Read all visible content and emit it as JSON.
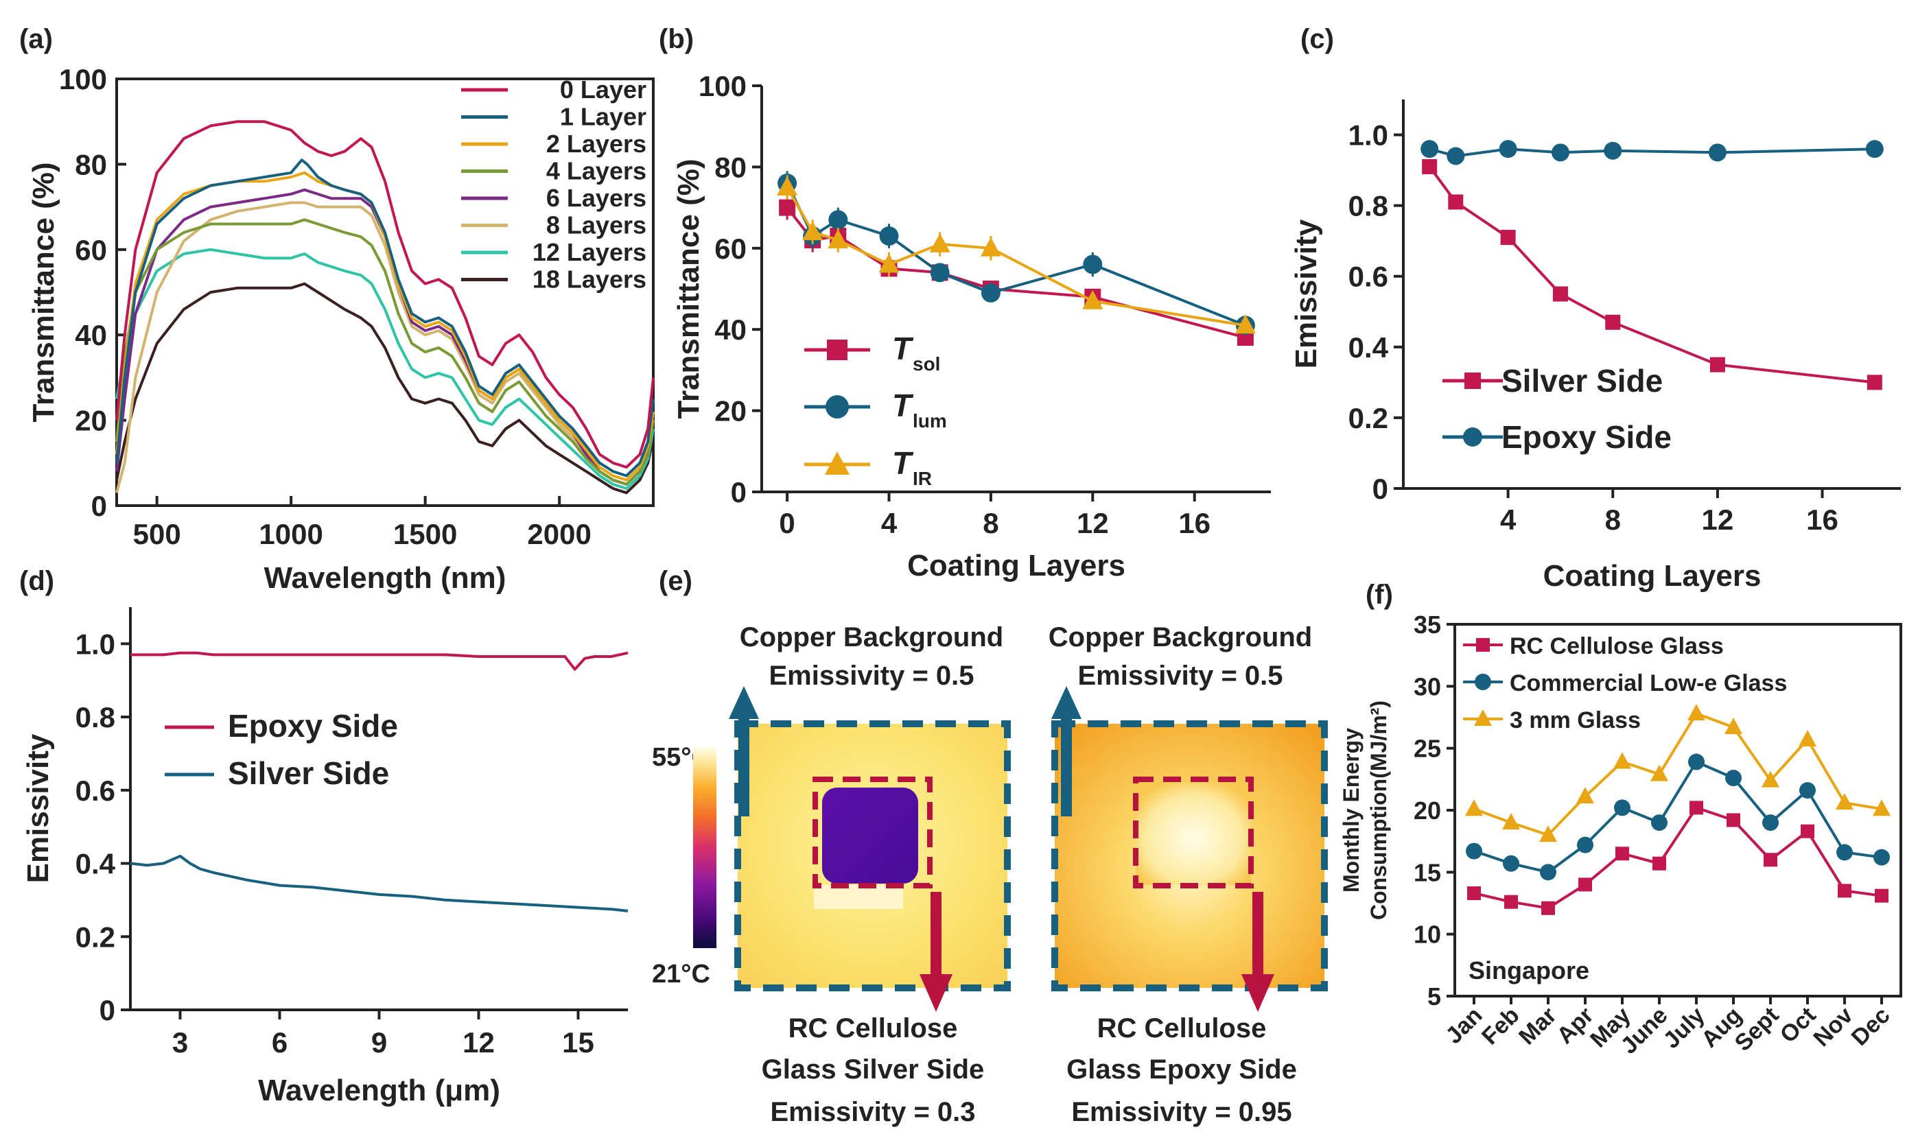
{
  "colors": {
    "red": "#c0184f",
    "teal": "#17607f",
    "gold": "#e8a514",
    "arrowBlue": "#17607f",
    "arrowRed": "#b8133f"
  },
  "panel_labels": [
    "(a)",
    "(b)",
    "(c)",
    "(d)",
    "(e)",
    "(f)"
  ],
  "chart_data": [
    {
      "id": "a",
      "type": "line",
      "xlabel": "Wavelength (nm)",
      "ylabel": "Transmittance (%)",
      "xlim": [
        350,
        2350
      ],
      "ylim": [
        0,
        100
      ],
      "xticks": [
        500,
        1000,
        1500,
        2000
      ],
      "yticks": [
        0,
        20,
        40,
        60,
        80,
        100
      ],
      "legend": "top-right",
      "series": [
        {
          "name": "0 Layer",
          "color": "#c0184f",
          "x": [
            350,
            380,
            420,
            500,
            600,
            700,
            800,
            900,
            1000,
            1050,
            1100,
            1150,
            1200,
            1260,
            1300,
            1350,
            1400,
            1450,
            1500,
            1550,
            1600,
            1650,
            1700,
            1750,
            1800,
            1850,
            1900,
            1950,
            2000,
            2050,
            2100,
            2150,
            2200,
            2250,
            2300,
            2330,
            2350
          ],
          "y": [
            20,
            40,
            60,
            78,
            86,
            89,
            90,
            90,
            88,
            85,
            83,
            82,
            83,
            86,
            84,
            76,
            64,
            55,
            52,
            53,
            51,
            44,
            35,
            33,
            38,
            40,
            36,
            30,
            26,
            23,
            18,
            12,
            10,
            9,
            12,
            18,
            30
          ]
        },
        {
          "name": "1 Layer",
          "color": "#17607f",
          "x": [
            350,
            380,
            420,
            500,
            600,
            700,
            800,
            900,
            1000,
            1040,
            1060,
            1100,
            1150,
            1200,
            1260,
            1300,
            1350,
            1400,
            1450,
            1500,
            1550,
            1600,
            1650,
            1700,
            1750,
            1800,
            1850,
            1900,
            1950,
            2000,
            2050,
            2100,
            2150,
            2200,
            2250,
            2300,
            2330,
            2350
          ],
          "y": [
            10,
            30,
            50,
            66,
            72,
            75,
            76,
            77,
            78,
            81,
            80,
            77,
            75,
            74,
            73,
            71,
            64,
            53,
            45,
            43,
            44,
            42,
            36,
            28,
            26,
            31,
            33,
            29,
            25,
            21,
            18,
            14,
            10,
            8,
            7,
            10,
            15,
            25
          ]
        },
        {
          "name": "2 Layers",
          "color": "#e8a514",
          "x": [
            350,
            380,
            420,
            500,
            600,
            700,
            800,
            900,
            1000,
            1050,
            1100,
            1150,
            1200,
            1260,
            1300,
            1350,
            1400,
            1450,
            1500,
            1550,
            1600,
            1650,
            1700,
            1750,
            1800,
            1850,
            1900,
            1950,
            2000,
            2050,
            2100,
            2150,
            2200,
            2250,
            2300,
            2330,
            2350
          ],
          "y": [
            12,
            32,
            52,
            67,
            73,
            75,
            76,
            76,
            77,
            78,
            76,
            75,
            74,
            73,
            71,
            63,
            52,
            44,
            42,
            43,
            41,
            35,
            27,
            25,
            30,
            32,
            28,
            24,
            20,
            17,
            13,
            9,
            7,
            6,
            9,
            14,
            22
          ]
        },
        {
          "name": "4 Layers",
          "color": "#7a9a35",
          "x": [
            350,
            380,
            420,
            500,
            600,
            700,
            800,
            900,
            1000,
            1050,
            1100,
            1150,
            1200,
            1260,
            1300,
            1350,
            1400,
            1450,
            1500,
            1550,
            1600,
            1650,
            1700,
            1750,
            1800,
            1850,
            1900,
            1950,
            2000,
            2050,
            2100,
            2150,
            2200,
            2250,
            2300,
            2330,
            2350
          ],
          "y": [
            15,
            35,
            50,
            60,
            64,
            66,
            66,
            66,
            66,
            67,
            66,
            65,
            64,
            63,
            61,
            55,
            45,
            38,
            36,
            37,
            35,
            30,
            24,
            22,
            27,
            29,
            25,
            21,
            18,
            15,
            11,
            8,
            6,
            5,
            8,
            12,
            20
          ]
        },
        {
          "name": "6 Layers",
          "color": "#7b2a86",
          "x": [
            350,
            380,
            420,
            500,
            600,
            700,
            800,
            900,
            1000,
            1050,
            1100,
            1150,
            1200,
            1260,
            1300,
            1350,
            1400,
            1450,
            1500,
            1550,
            1600,
            1650,
            1700,
            1750,
            1800,
            1850,
            1900,
            1950,
            2000,
            2050,
            2100,
            2150,
            2200,
            2250,
            2300,
            2330,
            2350
          ],
          "y": [
            8,
            25,
            45,
            60,
            67,
            70,
            71,
            72,
            73,
            74,
            73,
            72,
            72,
            72,
            70,
            63,
            52,
            43,
            41,
            42,
            40,
            34,
            27,
            25,
            30,
            32,
            28,
            24,
            20,
            17,
            12,
            8,
            6,
            5,
            8,
            13,
            22
          ]
        },
        {
          "name": "8 Layers",
          "color": "#d2b46e",
          "x": [
            350,
            380,
            420,
            500,
            600,
            700,
            800,
            900,
            1000,
            1050,
            1100,
            1150,
            1200,
            1260,
            1300,
            1350,
            1400,
            1450,
            1500,
            1550,
            1600,
            1650,
            1700,
            1750,
            1800,
            1850,
            1900,
            1950,
            2000,
            2050,
            2100,
            2150,
            2200,
            2250,
            2300,
            2330,
            2350
          ],
          "y": [
            3,
            10,
            30,
            50,
            62,
            67,
            69,
            70,
            71,
            71,
            70,
            70,
            70,
            70,
            68,
            61,
            50,
            42,
            40,
            41,
            39,
            33,
            26,
            24,
            29,
            31,
            27,
            23,
            19,
            16,
            12,
            8,
            6,
            5,
            8,
            13,
            22
          ]
        },
        {
          "name": "12 Layers",
          "color": "#2ec4a7",
          "x": [
            350,
            380,
            420,
            500,
            600,
            700,
            800,
            900,
            1000,
            1050,
            1100,
            1150,
            1200,
            1260,
            1300,
            1350,
            1400,
            1450,
            1500,
            1550,
            1600,
            1650,
            1700,
            1750,
            1800,
            1850,
            1900,
            1950,
            2000,
            2050,
            2100,
            2150,
            2200,
            2250,
            2300,
            2330,
            2350
          ],
          "y": [
            25,
            35,
            45,
            55,
            59,
            60,
            59,
            58,
            58,
            59,
            57,
            56,
            55,
            54,
            52,
            46,
            38,
            32,
            30,
            31,
            30,
            25,
            20,
            19,
            23,
            25,
            22,
            19,
            16,
            13,
            10,
            7,
            5,
            4,
            7,
            11,
            18
          ]
        },
        {
          "name": "18 Layers",
          "color": "#3b2020",
          "x": [
            350,
            380,
            420,
            500,
            600,
            700,
            800,
            900,
            1000,
            1050,
            1100,
            1150,
            1200,
            1260,
            1300,
            1350,
            1400,
            1450,
            1500,
            1550,
            1600,
            1650,
            1700,
            1750,
            1800,
            1850,
            1900,
            1950,
            2000,
            2050,
            2100,
            2150,
            2200,
            2250,
            2300,
            2330,
            2350
          ],
          "y": [
            6,
            15,
            25,
            38,
            46,
            50,
            51,
            51,
            51,
            52,
            50,
            48,
            46,
            44,
            42,
            37,
            30,
            25,
            24,
            25,
            24,
            20,
            15,
            14,
            18,
            20,
            17,
            14,
            12,
            10,
            8,
            6,
            4,
            3,
            6,
            10,
            16
          ]
        }
      ]
    },
    {
      "id": "b",
      "type": "line",
      "xlabel": "Coating Layers",
      "ylabel": "Transmittance (%)",
      "xlim": [
        -1,
        19
      ],
      "ylim": [
        0,
        100
      ],
      "xticks": [
        0,
        4,
        8,
        12,
        16
      ],
      "yticks": [
        0,
        20,
        40,
        60,
        80,
        100
      ],
      "legend": "bottom-left",
      "series": [
        {
          "name": "T",
          "sub": "sol",
          "color": "#c0184f",
          "marker": "square",
          "x": [
            0,
            1,
            2,
            4,
            6,
            8,
            12,
            18
          ],
          "y": [
            70,
            62,
            63,
            55,
            54,
            50,
            48,
            38
          ],
          "err": [
            3,
            3,
            3,
            2,
            2,
            2,
            2,
            1
          ]
        },
        {
          "name": "T",
          "sub": "lum",
          "color": "#17607f",
          "marker": "circle",
          "x": [
            0,
            1,
            2,
            4,
            6,
            8,
            12,
            18
          ],
          "y": [
            76,
            63,
            67,
            63,
            54,
            49,
            56,
            41
          ],
          "err": [
            3,
            3,
            3,
            3,
            2,
            2,
            3,
            1
          ]
        },
        {
          "name": "T",
          "sub": "IR",
          "color": "#e8a514",
          "marker": "triangle",
          "x": [
            0,
            1,
            2,
            4,
            6,
            8,
            12,
            18
          ],
          "y": [
            75,
            64,
            62,
            56,
            61,
            60,
            47,
            41
          ],
          "err": [
            3,
            3,
            3,
            3,
            3,
            3,
            2,
            1
          ]
        }
      ]
    },
    {
      "id": "c",
      "type": "line",
      "xlabel": "Coating Layers",
      "ylabel": "Emissivity",
      "xlim": [
        0,
        19
      ],
      "ylim": [
        0,
        1.1
      ],
      "xticks": [
        4,
        8,
        12,
        16
      ],
      "yticks": [
        0,
        0.2,
        0.4,
        0.6,
        0.8,
        1.0
      ],
      "legend": "bottom-left",
      "series": [
        {
          "name": "Silver Side",
          "color": "#c0184f",
          "marker": "square",
          "x": [
            1,
            2,
            4,
            6,
            8,
            12,
            18
          ],
          "y": [
            0.91,
            0.81,
            0.71,
            0.55,
            0.47,
            0.35,
            0.3
          ]
        },
        {
          "name": "Epoxy Side",
          "color": "#17607f",
          "marker": "circle",
          "x": [
            1,
            2,
            4,
            6,
            8,
            12,
            18
          ],
          "y": [
            0.96,
            0.94,
            0.96,
            0.95,
            0.955,
            0.95,
            0.96
          ]
        }
      ]
    },
    {
      "id": "d",
      "type": "line",
      "xlabel": "Wavelength (μm)",
      "ylabel": "Emissivity",
      "xlim": [
        1.5,
        16.5
      ],
      "ylim": [
        0,
        1.1
      ],
      "xticks": [
        3,
        6,
        9,
        12,
        15
      ],
      "yticks": [
        0,
        0.2,
        0.4,
        0.6,
        0.8,
        1.0
      ],
      "legend": "center-left",
      "series": [
        {
          "name": "Epoxy Side",
          "color": "#c0184f",
          "x": [
            1.5,
            2,
            2.5,
            3,
            3.5,
            4,
            5,
            6,
            7,
            8,
            9,
            10,
            11,
            12,
            13,
            14,
            14.6,
            14.9,
            15.2,
            15.5,
            16,
            16.5
          ],
          "y": [
            0.97,
            0.97,
            0.97,
            0.975,
            0.975,
            0.97,
            0.97,
            0.97,
            0.97,
            0.97,
            0.97,
            0.97,
            0.97,
            0.965,
            0.965,
            0.965,
            0.965,
            0.93,
            0.96,
            0.965,
            0.965,
            0.975
          ]
        },
        {
          "name": "Silver Side",
          "color": "#17607f",
          "x": [
            1.5,
            2,
            2.5,
            3,
            3.3,
            3.6,
            4,
            5,
            6,
            7,
            8,
            9,
            10,
            11,
            12,
            13,
            14,
            15,
            16,
            16.5
          ],
          "y": [
            0.4,
            0.395,
            0.4,
            0.42,
            0.4,
            0.385,
            0.375,
            0.355,
            0.34,
            0.335,
            0.325,
            0.315,
            0.31,
            0.3,
            0.295,
            0.29,
            0.285,
            0.28,
            0.275,
            0.27
          ]
        }
      ]
    },
    {
      "id": "f",
      "type": "line",
      "ylabel_line1": "Monthly Energy",
      "ylabel_line2": "Consumption(MJ/m²)",
      "annotation": "Singapore",
      "ylim": [
        5,
        35
      ],
      "yticks": [
        5,
        10,
        15,
        20,
        25,
        30,
        35
      ],
      "legend": "top-left",
      "categories": [
        "Jan",
        "Feb",
        "Mar",
        "Apr",
        "May",
        "June",
        "July",
        "Aug",
        "Sept",
        "Oct",
        "Nov",
        "Dec"
      ],
      "series": [
        {
          "name": "RC Cellulose Glass",
          "color": "#c0184f",
          "marker": "square",
          "values": [
            13.3,
            12.6,
            12.1,
            14.0,
            16.5,
            15.7,
            20.2,
            19.2,
            16.0,
            18.3,
            13.5,
            13.1
          ]
        },
        {
          "name": "Commercial Low-e Glass",
          "color": "#17607f",
          "marker": "circle",
          "values": [
            16.7,
            15.7,
            15.0,
            17.2,
            20.2,
            19.0,
            23.9,
            22.6,
            19.0,
            21.6,
            16.6,
            16.2
          ]
        },
        {
          "name": "3 mm Glass",
          "color": "#e8a514",
          "marker": "triangle",
          "values": [
            20.1,
            19.0,
            18.0,
            21.1,
            23.9,
            22.9,
            27.8,
            26.7,
            22.4,
            25.7,
            20.6,
            20.1
          ]
        }
      ]
    }
  ],
  "panel_e": {
    "left_top_line1": "Copper Background",
    "left_top_line2": "Emissivity = 0.5",
    "right_top_line1": "Copper Background",
    "right_top_line2": "Emissivity = 0.5",
    "left_bottom_line1": "RC Cellulose",
    "left_bottom_line2": "Glass Silver Side",
    "left_bottom_line3": "Emissivity = 0.3",
    "right_bottom_line1": "RC Cellulose",
    "right_bottom_line2": "Glass Epoxy Side",
    "right_bottom_line3": "Emissivity = 0.95",
    "scale_max": "55°C",
    "scale_min": "21°C"
  }
}
